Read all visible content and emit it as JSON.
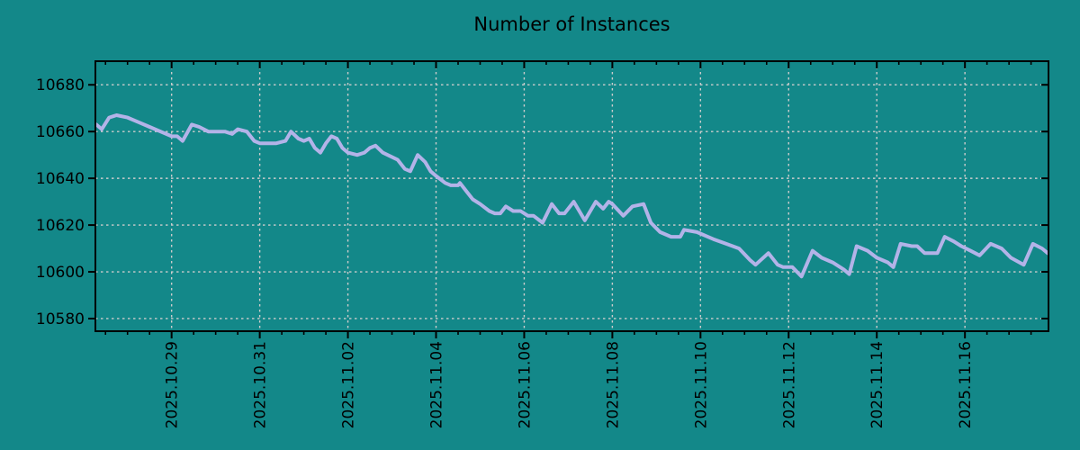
{
  "colors": {
    "background": "#138889",
    "line": "#b3b3e8",
    "grid": "#cccccc",
    "axis": "#000000",
    "text": "#000000"
  },
  "chart_data": {
    "type": "line",
    "title": "Number of Instances",
    "xlabel": "",
    "ylabel": "",
    "legend": false,
    "grid": true,
    "x_range": [
      "2025-10-27 06:30",
      "2025-11-17 21:30"
    ],
    "ylim": [
      10574.6,
      10690.1
    ],
    "y_ticks": [
      10580,
      10600,
      10620,
      10640,
      10660,
      10680
    ],
    "x_major_ticks": [
      "2025.10.29",
      "2025.10.31",
      "2025.11.02",
      "2025.11.04",
      "2025.11.06",
      "2025.11.08",
      "2025.11.10",
      "2025.11.12",
      "2025.11.14",
      "2025.11.16"
    ],
    "x_minor_tick_interval_hours": 12,
    "series": [
      {
        "name": "instances",
        "color": "#b3b3e8",
        "points": [
          [
            "2025-10-27 07:00",
            10663
          ],
          [
            "2025-10-27 10:00",
            10661
          ],
          [
            "2025-10-27 14:00",
            10666
          ],
          [
            "2025-10-27 18:00",
            10667
          ],
          [
            "2025-10-28 00:00",
            10666
          ],
          [
            "2025-10-28 06:00",
            10664
          ],
          [
            "2025-10-28 12:00",
            10662
          ],
          [
            "2025-10-28 18:00",
            10660
          ],
          [
            "2025-10-29 00:00",
            10658
          ],
          [
            "2025-10-29 03:00",
            10658
          ],
          [
            "2025-10-29 06:00",
            10656
          ],
          [
            "2025-10-29 11:00",
            10663
          ],
          [
            "2025-10-29 15:00",
            10662
          ],
          [
            "2025-10-29 20:00",
            10660
          ],
          [
            "2025-10-30 00:00",
            10660
          ],
          [
            "2025-10-30 05:00",
            10660
          ],
          [
            "2025-10-30 09:00",
            10659
          ],
          [
            "2025-10-30 12:00",
            10661
          ],
          [
            "2025-10-30 17:00",
            10660
          ],
          [
            "2025-10-30 21:00",
            10656
          ],
          [
            "2025-10-31 00:00",
            10655
          ],
          [
            "2025-10-31 04:00",
            10655
          ],
          [
            "2025-10-31 09:00",
            10655
          ],
          [
            "2025-10-31 14:00",
            10656
          ],
          [
            "2025-10-31 17:00",
            10660
          ],
          [
            "2025-10-31 21:00",
            10657
          ],
          [
            "2025-11-01 00:00",
            10656
          ],
          [
            "2025-11-01 03:00",
            10657
          ],
          [
            "2025-11-01 06:00",
            10653
          ],
          [
            "2025-11-01 09:00",
            10651
          ],
          [
            "2025-11-01 12:00",
            10655
          ],
          [
            "2025-11-01 15:00",
            10658
          ],
          [
            "2025-11-01 18:00",
            10657
          ],
          [
            "2025-11-01 21:00",
            10653
          ],
          [
            "2025-11-02 00:00",
            10651
          ],
          [
            "2025-11-02 05:00",
            10650
          ],
          [
            "2025-11-02 09:00",
            10651
          ],
          [
            "2025-11-02 12:00",
            10653
          ],
          [
            "2025-11-02 15:00",
            10654
          ],
          [
            "2025-11-02 19:00",
            10651
          ],
          [
            "2025-11-03 03:00",
            10648
          ],
          [
            "2025-11-03 07:00",
            10644
          ],
          [
            "2025-11-03 10:00",
            10643
          ],
          [
            "2025-11-03 14:00",
            10650
          ],
          [
            "2025-11-03 18:00",
            10647
          ],
          [
            "2025-11-03 21:00",
            10643
          ],
          [
            "2025-11-04 00:00",
            10641
          ],
          [
            "2025-11-04 05:00",
            10638
          ],
          [
            "2025-11-04 08:00",
            10637
          ],
          [
            "2025-11-04 12:00",
            10637
          ],
          [
            "2025-11-04 13:00",
            10638
          ],
          [
            "2025-11-04 17:00",
            10634
          ],
          [
            "2025-11-04 20:00",
            10631
          ],
          [
            "2025-11-05 00:00",
            10629
          ],
          [
            "2025-11-05 05:00",
            10626
          ],
          [
            "2025-11-05 08:00",
            10625
          ],
          [
            "2025-11-05 11:00",
            10625
          ],
          [
            "2025-11-05 14:00",
            10628
          ],
          [
            "2025-11-05 18:00",
            10626
          ],
          [
            "2025-11-05 22:00",
            10626
          ],
          [
            "2025-11-06 02:00",
            10624
          ],
          [
            "2025-11-06 05:00",
            10624
          ],
          [
            "2025-11-06 10:00",
            10621
          ],
          [
            "2025-11-06 15:00",
            10629
          ],
          [
            "2025-11-06 19:00",
            10625
          ],
          [
            "2025-11-06 22:00",
            10625
          ],
          [
            "2025-11-07 03:00",
            10630
          ],
          [
            "2025-11-07 09:00",
            10622
          ],
          [
            "2025-11-07 15:00",
            10630
          ],
          [
            "2025-11-07 19:00",
            10627
          ],
          [
            "2025-11-07 22:00",
            10630
          ],
          [
            "2025-11-08 00:00",
            10629
          ],
          [
            "2025-11-08 06:00",
            10624
          ],
          [
            "2025-11-08 11:00",
            10628
          ],
          [
            "2025-11-08 17:00",
            10629
          ],
          [
            "2025-11-08 21:00",
            10621
          ],
          [
            "2025-11-09 02:00",
            10617
          ],
          [
            "2025-11-09 08:00",
            10615
          ],
          [
            "2025-11-09 13:00",
            10615
          ],
          [
            "2025-11-09 15:00",
            10618
          ],
          [
            "2025-11-09 22:00",
            10617
          ],
          [
            "2025-11-10 07:00",
            10614
          ],
          [
            "2025-11-10 14:00",
            10612
          ],
          [
            "2025-11-10 21:00",
            10610
          ],
          [
            "2025-11-11 03:00",
            10605
          ],
          [
            "2025-11-11 06:00",
            10603
          ],
          [
            "2025-11-11 13:00",
            10608
          ],
          [
            "2025-11-11 18:00",
            10603
          ],
          [
            "2025-11-11 21:00",
            10602
          ],
          [
            "2025-11-12 02:00",
            10602
          ],
          [
            "2025-11-12 07:00",
            10598
          ],
          [
            "2025-11-12 13:00",
            10609
          ],
          [
            "2025-11-12 18:00",
            10606
          ],
          [
            "2025-11-13 00:00",
            10604
          ],
          [
            "2025-11-13 06:00",
            10601
          ],
          [
            "2025-11-13 09:00",
            10599
          ],
          [
            "2025-11-13 13:00",
            10611
          ],
          [
            "2025-11-13 19:00",
            10609
          ],
          [
            "2025-11-14 00:00",
            10606
          ],
          [
            "2025-11-14 06:00",
            10604
          ],
          [
            "2025-11-14 09:00",
            10602
          ],
          [
            "2025-11-14 13:00",
            10612
          ],
          [
            "2025-11-14 19:00",
            10611
          ],
          [
            "2025-11-14 22:00",
            10611
          ],
          [
            "2025-11-15 02:00",
            10608
          ],
          [
            "2025-11-15 09:00",
            10608
          ],
          [
            "2025-11-15 13:00",
            10615
          ],
          [
            "2025-11-15 18:00",
            10613
          ],
          [
            "2025-11-15 22:00",
            10611
          ],
          [
            "2025-11-16 03:00",
            10609
          ],
          [
            "2025-11-16 08:00",
            10607
          ],
          [
            "2025-11-16 14:00",
            10612
          ],
          [
            "2025-11-16 20:00",
            10610
          ],
          [
            "2025-11-17 01:00",
            10606
          ],
          [
            "2025-11-17 08:00",
            10603
          ],
          [
            "2025-11-17 13:00",
            10612
          ],
          [
            "2025-11-17 18:00",
            10610
          ],
          [
            "2025-11-17 21:00",
            10608
          ]
        ]
      }
    ]
  }
}
